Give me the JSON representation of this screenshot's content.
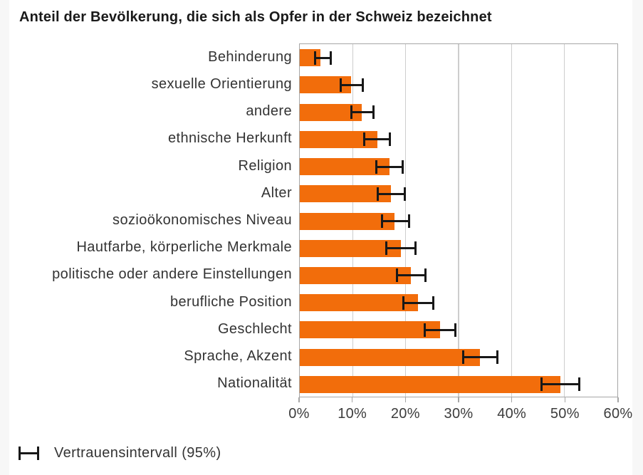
{
  "title": "Anteil der Bevölkerung, die sich als Opfer in der Schweiz bezeichnet",
  "legend": {
    "icon": "error-bar-icon",
    "label": "Vertrauensintervall (95%)"
  },
  "colors": {
    "bar": "#F26D0B",
    "error_bar": "#181818",
    "gridline": "#cdcdcd",
    "plot_border": "#a6a6a6",
    "page_bg": "#f7f7f7",
    "card_bg": "#ffffff",
    "title_text": "#1a1a1a",
    "label_text": "#333333"
  },
  "chart_data": {
    "type": "bar",
    "orientation": "horizontal",
    "title": "Anteil der Bevölkerung, die sich als Opfer in der Schweiz bezeichnet",
    "categories": [
      "Behinderung",
      "sexuelle Orientierung",
      "andere",
      "ethnische Herkunft",
      "Religion",
      "Alter",
      "sozioökonomisches Niveau",
      "Hautfarbe, körperliche Merkmale",
      "politische oder andere Einstellungen",
      "berufliche Position",
      "Geschlecht",
      "Sprache, Akzent",
      "Nationalität"
    ],
    "values": [
      3.9,
      9.7,
      11.7,
      14.6,
      16.9,
      17.2,
      17.9,
      19.1,
      21.0,
      22.3,
      26.5,
      34.1,
      49.3
    ],
    "ci_low": [
      2.7,
      7.5,
      9.5,
      12.0,
      14.2,
      14.5,
      15.3,
      16.2,
      18.1,
      19.4,
      23.4,
      30.7,
      45.5
    ],
    "ci_high": [
      6.0,
      12.1,
      14.1,
      17.2,
      19.6,
      20.0,
      20.9,
      22.1,
      23.9,
      25.4,
      29.6,
      37.6,
      53.0
    ],
    "ci_label": "Vertrauensintervall (95%)",
    "unit": "%",
    "xlabel": "",
    "ylabel": "",
    "xlim": [
      0,
      60
    ],
    "x_tick_values": [
      0,
      10,
      20,
      30,
      40,
      50,
      60
    ],
    "x_tick_labels": [
      "0%",
      "10%",
      "20%",
      "30%",
      "40%",
      "50%",
      "60%"
    ],
    "grid": true,
    "legend_position": "bottom-left"
  }
}
